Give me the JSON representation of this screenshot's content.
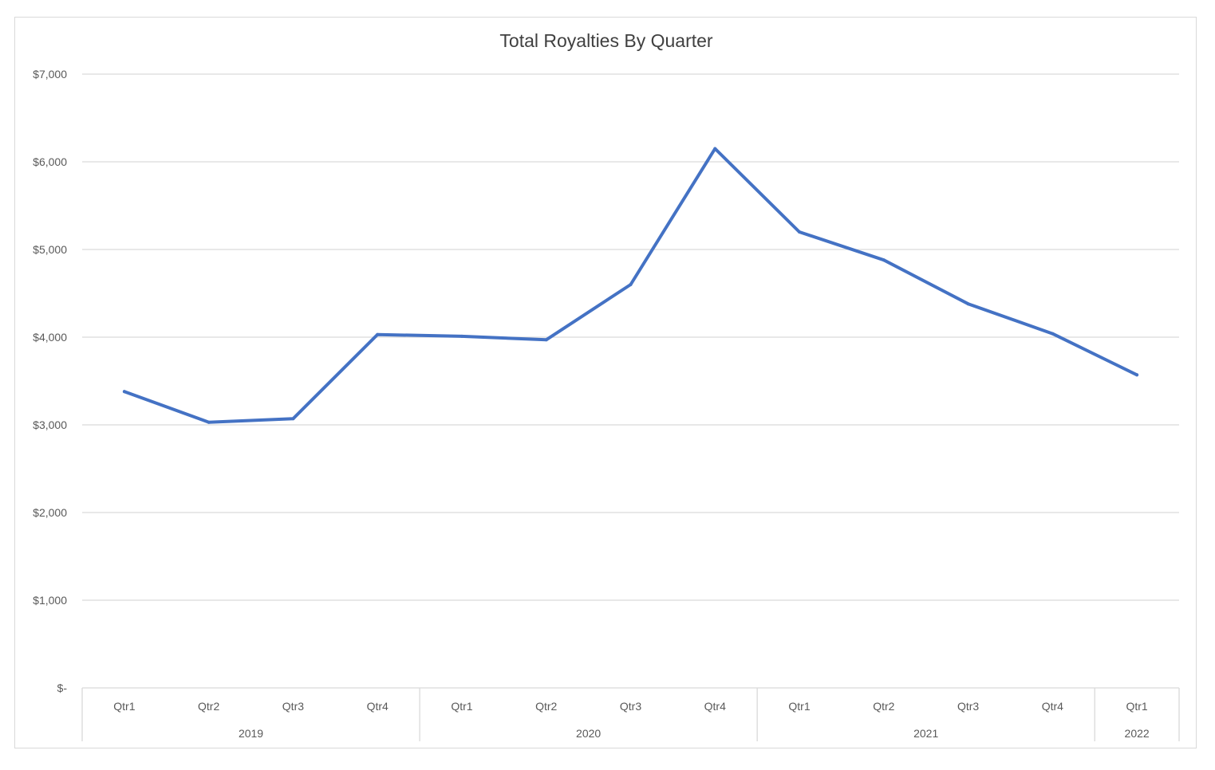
{
  "chart_data": {
    "type": "line",
    "title": "Total Royalties By Quarter",
    "xlabel": "",
    "ylabel": "",
    "categories": [
      "Qtr1",
      "Qtr2",
      "Qtr3",
      "Qtr4",
      "Qtr1",
      "Qtr2",
      "Qtr3",
      "Qtr4",
      "Qtr1",
      "Qtr2",
      "Qtr3",
      "Qtr4",
      "Qtr1"
    ],
    "groups": [
      {
        "label": "2019",
        "count": 4
      },
      {
        "label": "2020",
        "count": 4
      },
      {
        "label": "2021",
        "count": 4
      },
      {
        "label": "2022",
        "count": 1
      }
    ],
    "series": [
      {
        "values": [
          3380,
          3030,
          3070,
          4030,
          4010,
          3970,
          4600,
          6150,
          5200,
          4880,
          4380,
          4040,
          3570
        ]
      }
    ],
    "ylim": [
      0,
      7000
    ],
    "yticks": [
      0,
      1000,
      2000,
      3000,
      4000,
      5000,
      6000,
      7000
    ],
    "ytick_labels": [
      "$-",
      "$1,000",
      "$2,000",
      "$3,000",
      "$4,000",
      "$5,000",
      "$6,000",
      "$7,000"
    ],
    "grid": true,
    "colors": {
      "line": "#4472c4",
      "grid": "#d9d9d9",
      "text": "#595959"
    }
  }
}
